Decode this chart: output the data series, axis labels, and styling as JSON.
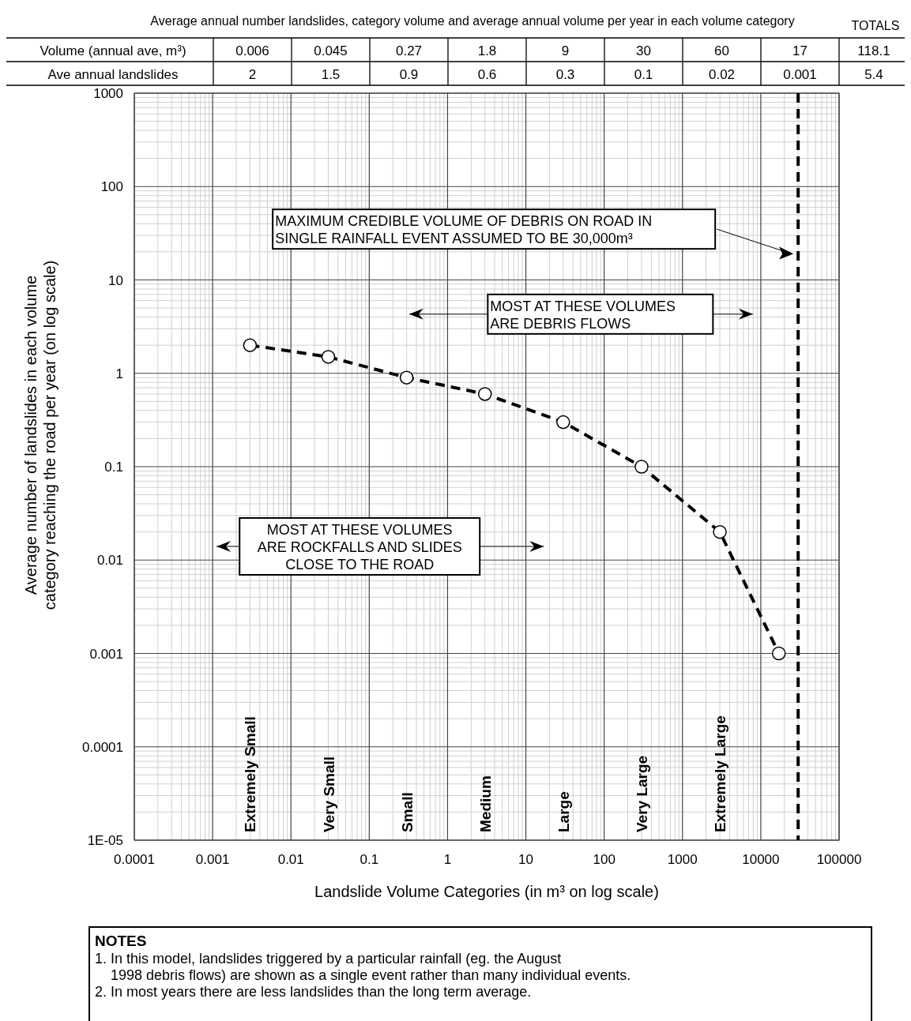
{
  "chart_data": {
    "type": "line",
    "title": "Average annual number landslides, category volume and average annual volume per year in each volume category",
    "xlabel": "Landslide Volume Categories (in m³ on log scale)",
    "ylabel": "Average number of landslides in each volume category reaching the road per year (on log scale)",
    "log": "xy",
    "grid": true,
    "marker": "circle",
    "line_style": "dashed",
    "xlim": [
      0.0001,
      100000
    ],
    "xticks": [
      0.0001,
      0.001,
      0.01,
      0.1,
      1,
      10,
      100,
      1000,
      10000,
      100000
    ],
    "ylim": [
      1e-05,
      1000
    ],
    "yticks": [
      {
        "value": 1e-05,
        "label": "1E-05"
      },
      0.0001,
      0.001,
      0.01,
      0.1,
      1,
      10,
      100,
      1000
    ],
    "series": [
      {
        "color": "#000000",
        "x": [
          0.003,
          0.03,
          0.3,
          3,
          30,
          300,
          3000,
          17000
        ],
        "values": [
          2,
          1.5,
          0.9,
          0.6,
          0.3,
          0.1,
          0.02,
          0.001
        ]
      }
    ],
    "ref_lines": [
      {
        "axis": "x",
        "value": 30000,
        "color": "#000000",
        "line_style": "dashed"
      }
    ],
    "annotations": [
      "Volume (annual ave, m³)",
      "0.006",
      "0.045",
      "0.27",
      "1.8",
      "9",
      "30",
      "60",
      "17",
      "118.1",
      "TOTALS",
      "Ave annual landslides",
      "2",
      "1.5",
      "0.9",
      "0.6",
      "0.3",
      "0.1",
      "0.02",
      "0.001",
      "5.4",
      "MAXIMUM CREDIBLE VOLUME OF DEBRIS ON ROAD IN SINGLE RAINFALL EVENT ASSUMED TO BE 30,000m³",
      "MOST AT THESE VOLUMES ARE DEBRIS FLOWS",
      "MOST AT THESE VOLUMES ARE ROCKFALLS AND SLIDES CLOSE TO THE ROAD",
      {
        "text": "Extremely Small",
        "x": 0.003
      },
      {
        "text": "Very Small",
        "x": 0.03
      },
      {
        "text": "Small",
        "x": 0.3
      },
      {
        "text": "Medium",
        "x": 3
      },
      {
        "text": "Large",
        "x": 30
      },
      {
        "text": "Very Large",
        "x": 300
      },
      {
        "text": "Extremely Large",
        "x": 3000
      },
      "NOTES",
      "1. In this model, landslides triggered by a particular rainfall (eg. the August 1998 debris flows) are shown as a single event rather than many individual events.",
      "2. In most years there are less landslides than the long term average."
    ]
  }
}
